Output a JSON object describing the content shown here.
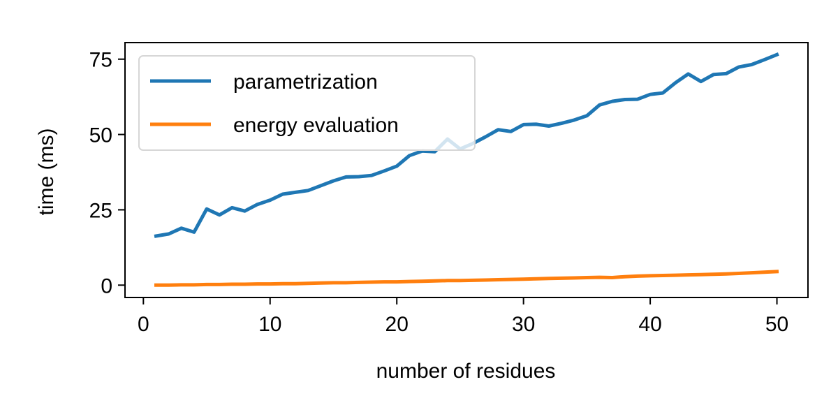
{
  "chart_data": {
    "type": "line",
    "xlabel": "number of residues",
    "ylabel": "time (ms)",
    "xlim": [
      -1.45,
      52.45
    ],
    "ylim": [
      -4.1,
      80.5
    ],
    "xticks": [
      0,
      10,
      20,
      30,
      40,
      50
    ],
    "yticks": [
      0,
      25,
      50,
      75
    ],
    "legend": "upper-left",
    "grid": false,
    "x": [
      1,
      2,
      3,
      4,
      5,
      6,
      7,
      8,
      9,
      10,
      11,
      12,
      13,
      14,
      15,
      16,
      17,
      18,
      19,
      20,
      21,
      22,
      23,
      24,
      25,
      26,
      27,
      28,
      29,
      30,
      31,
      32,
      33,
      34,
      35,
      36,
      37,
      38,
      39,
      40,
      41,
      42,
      43,
      44,
      45,
      46,
      47,
      48,
      49,
      50
    ],
    "series": [
      {
        "name": "parametrization",
        "color": "#1f77b4",
        "values": [
          16.3,
          17.0,
          18.9,
          17.6,
          25.3,
          23.3,
          25.7,
          24.6,
          26.8,
          28.2,
          30.2,
          30.8,
          31.4,
          33.0,
          34.6,
          35.9,
          36.0,
          36.4,
          37.9,
          39.5,
          43.0,
          44.5,
          44.3,
          48.5,
          45.2,
          47.0,
          49.2,
          51.6,
          51.0,
          53.3,
          53.4,
          52.8,
          53.7,
          54.8,
          56.2,
          59.8,
          61.0,
          61.6,
          61.7,
          63.3,
          63.8,
          67.2,
          70.1,
          67.6,
          69.9,
          70.2,
          72.4,
          73.2,
          74.8,
          76.5
        ]
      },
      {
        "name": "energy evaluation",
        "color": "#ff7f0e",
        "values": [
          0.0,
          0.0,
          0.1,
          0.1,
          0.2,
          0.2,
          0.3,
          0.3,
          0.4,
          0.4,
          0.5,
          0.5,
          0.6,
          0.7,
          0.8,
          0.8,
          0.9,
          1.0,
          1.1,
          1.1,
          1.2,
          1.3,
          1.4,
          1.5,
          1.5,
          1.6,
          1.7,
          1.8,
          1.9,
          2.0,
          2.1,
          2.2,
          2.3,
          2.4,
          2.5,
          2.6,
          2.5,
          2.8,
          3.0,
          3.1,
          3.2,
          3.3,
          3.4,
          3.5,
          3.6,
          3.7,
          3.9,
          4.1,
          4.3,
          4.5
        ]
      }
    ]
  }
}
